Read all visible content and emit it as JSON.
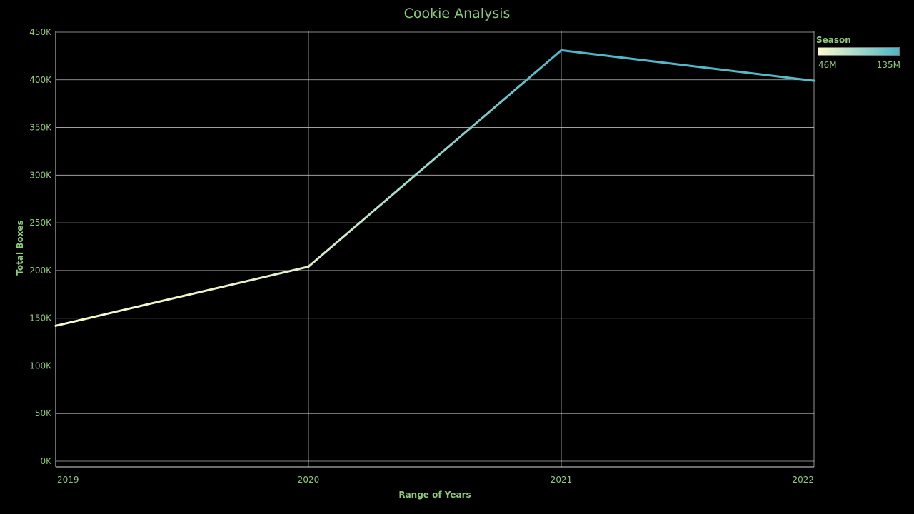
{
  "colors": {
    "text": "#8dc97a",
    "grid": "#d9d9d9",
    "background": "#000000",
    "gradient_start": "#fbfbc9",
    "gradient_end": "#4ab8c9"
  },
  "legend": {
    "title": "Season",
    "min_label": "46M",
    "max_label": "135M"
  },
  "chart_data": {
    "type": "line",
    "title": "Cookie Analysis",
    "xlabel": "Range of Years",
    "ylabel": "Total Boxes",
    "x": [
      "2019",
      "2020",
      "2021",
      "2022"
    ],
    "series": [
      {
        "name": "Total Boxes",
        "values": [
          142000,
          204000,
          431000,
          399000
        ]
      }
    ],
    "color_values": [
      46,
      60,
      135,
      130
    ],
    "ylim": [
      0,
      450000
    ],
    "yticks": [
      0,
      50000,
      100000,
      150000,
      200000,
      250000,
      300000,
      350000,
      400000,
      450000
    ],
    "ytick_labels": [
      "0K",
      "50K",
      "100K",
      "150K",
      "200K",
      "250K",
      "300K",
      "350K",
      "400K",
      "450K"
    ],
    "grid": true,
    "legend_position": "top-right"
  }
}
